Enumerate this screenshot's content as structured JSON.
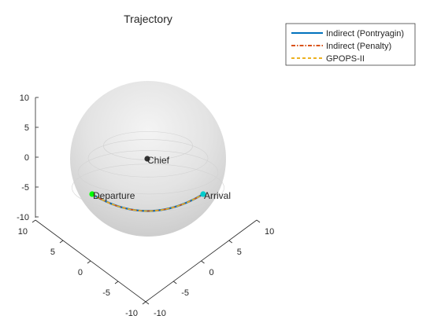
{
  "chart_data": {
    "type": "line",
    "title": "Trajectory",
    "view": "3d",
    "grid": false,
    "legend_position": "top-right",
    "zlim": [
      -10,
      10
    ],
    "ylim": [
      -10,
      10
    ],
    "xlim": [
      -10,
      10
    ],
    "z_ticks": [
      "10",
      "5",
      "0",
      "-5",
      "-10"
    ],
    "y_ticks": [
      "10",
      "5",
      "0",
      "-5",
      "-10"
    ],
    "x_ticks": [
      "-10",
      "-5",
      "0",
      "5",
      "10"
    ],
    "sphere": {
      "radius": 10,
      "center": [
        0,
        0,
        0
      ],
      "color": "#d9d9d9"
    },
    "series": [
      {
        "name": "Indirect (Pontryagin)",
        "color": "#0072bd",
        "style": "solid"
      },
      {
        "name": "Indirect (Penalty)",
        "color": "#d95319",
        "style": "dashdot"
      },
      {
        "name": "GPOPS-II",
        "color": "#edb120",
        "style": "dashed"
      }
    ],
    "annotations": [
      {
        "text": "Chief",
        "marker_color": "#333333"
      },
      {
        "text": "Departure",
        "marker_color": "#00ff00"
      },
      {
        "text": "Arrival",
        "marker_color": "#00cccc"
      }
    ]
  }
}
